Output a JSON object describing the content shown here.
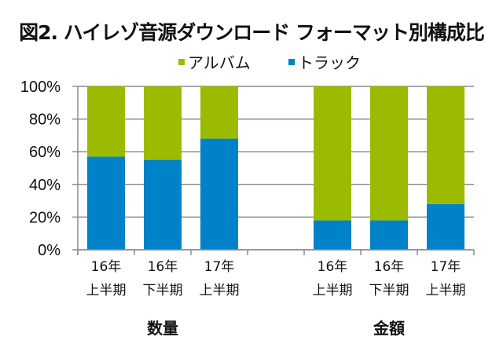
{
  "chart_data": {
    "type": "bar",
    "stacked": true,
    "percent_stacked": true,
    "title": "図2. ハイレゾ音源ダウンロード フォーマット別構成比",
    "legend": {
      "placement": "top",
      "entries": [
        {
          "name": "アルバム",
          "color": "#9bbb00"
        },
        {
          "name": "トラック",
          "color": "#0082c8"
        }
      ]
    },
    "y_axis": {
      "ylim": [
        0,
        100
      ],
      "ticks": [
        "0%",
        "20%",
        "40%",
        "60%",
        "80%",
        "100%"
      ],
      "tick_values": [
        0,
        20,
        40,
        60,
        80,
        100
      ],
      "grid": true
    },
    "categories": [
      {
        "line1": "16年",
        "line2": "上半期",
        "group": "数量"
      },
      {
        "line1": "16年",
        "line2": "下半期",
        "group": "数量"
      },
      {
        "line1": "17年",
        "line2": "上半期",
        "group": "数量"
      },
      {
        "line1": "",
        "line2": "",
        "group": ""
      },
      {
        "line1": "16年",
        "line2": "上半期",
        "group": "金額"
      },
      {
        "line1": "16年",
        "line2": "下半期",
        "group": "金額"
      },
      {
        "line1": "17年",
        "line2": "上半期",
        "group": "金額"
      }
    ],
    "series": [
      {
        "name": "トラック",
        "color": "#0082c8",
        "values": [
          57,
          55,
          68,
          null,
          18,
          18,
          28
        ]
      },
      {
        "name": "アルバム",
        "color": "#9bbb00",
        "values": [
          43,
          45,
          32,
          null,
          82,
          82,
          72
        ]
      }
    ],
    "groups": [
      {
        "label": "数量",
        "category_indices": [
          0,
          1,
          2
        ]
      },
      {
        "label": "金額",
        "category_indices": [
          4,
          5,
          6
        ]
      }
    ]
  }
}
